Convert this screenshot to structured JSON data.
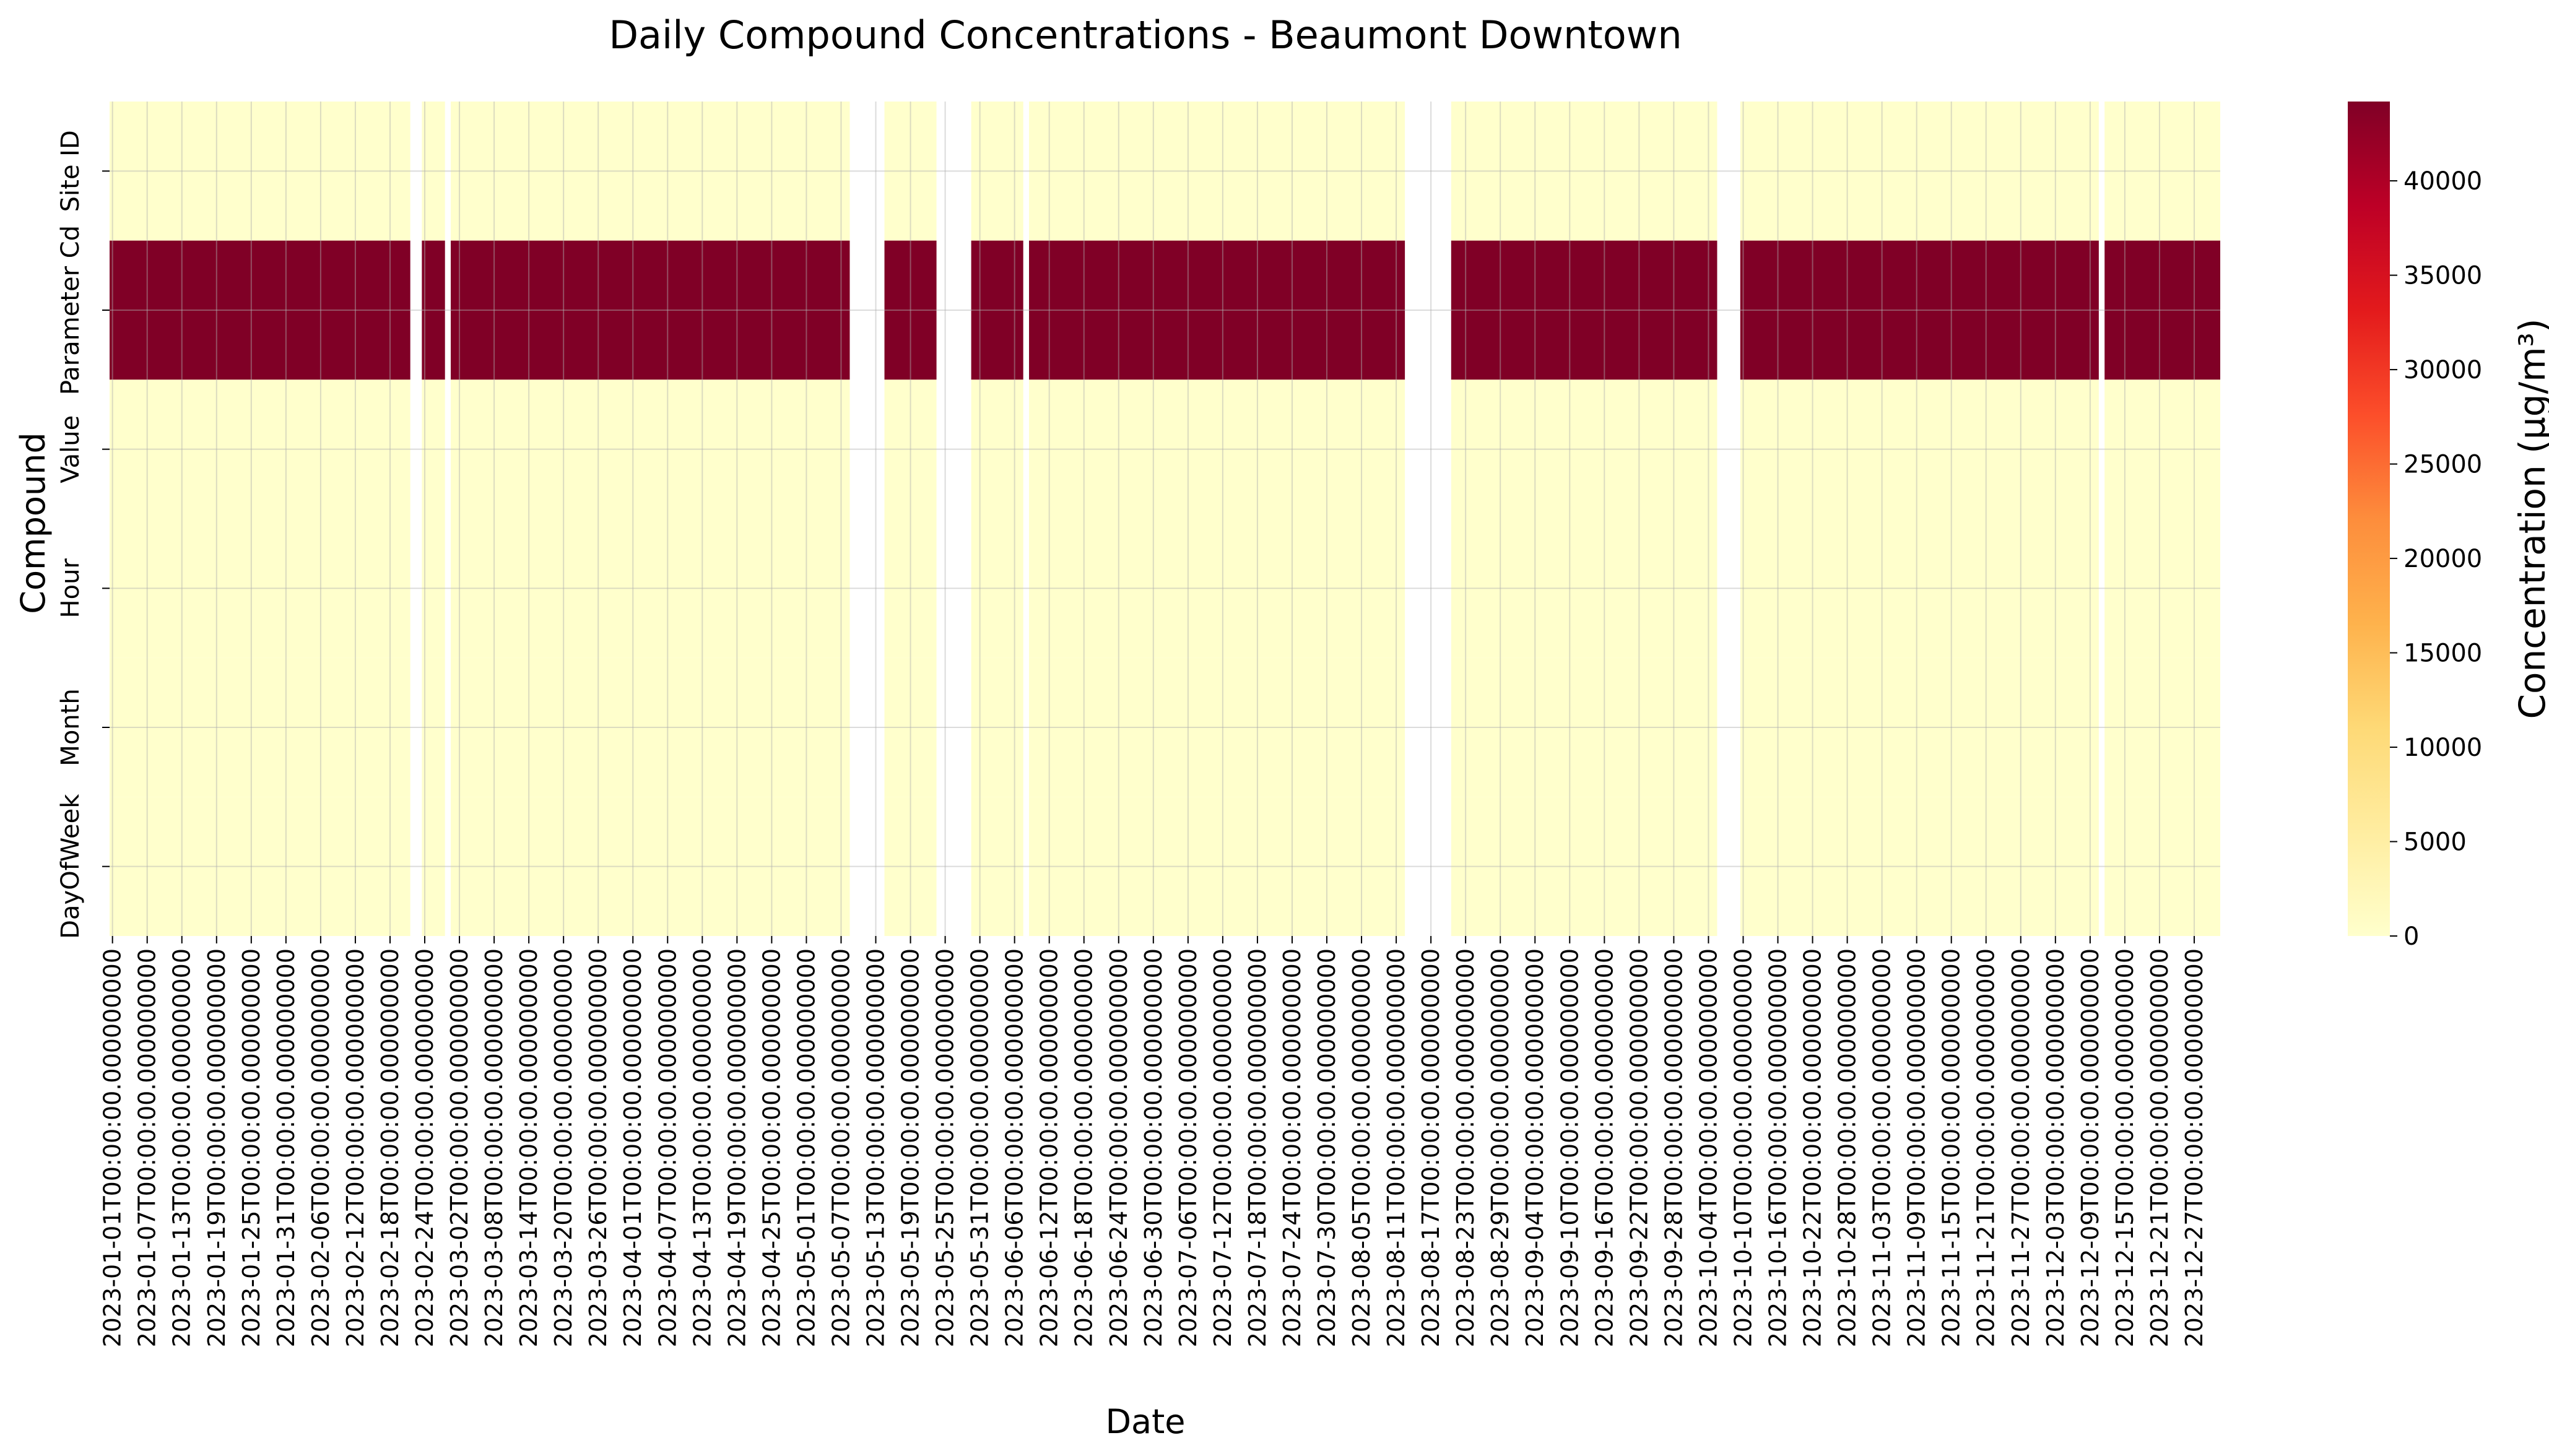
{
  "chart_data": {
    "type": "heatmap",
    "title": "Daily Compound Concentrations - Beaumont Downtown",
    "xlabel": "Date",
    "ylabel": "Compound",
    "rows": [
      "Site ID",
      "Parameter Cd",
      "Value",
      "Hour",
      "Month",
      "DayOfWeek"
    ],
    "row_values": [
      0,
      44201,
      0,
      0,
      0,
      0
    ],
    "date_range": [
      "2023-01-01",
      "2023-12-31"
    ],
    "missing_date_ranges": [
      [
        "2023-02-22",
        "2023-02-23"
      ],
      [
        "2023-02-28",
        "2023-02-28"
      ],
      [
        "2023-05-09",
        "2023-05-14"
      ],
      [
        "2023-05-24",
        "2023-05-29"
      ],
      [
        "2023-06-08",
        "2023-06-08"
      ],
      [
        "2023-08-13",
        "2023-08-20"
      ],
      [
        "2023-10-06",
        "2023-10-09"
      ],
      [
        "2023-12-11",
        "2023-12-11"
      ]
    ],
    "xtick_labels": [
      "2023-01-01T00:00:00.000000000",
      "2023-01-07T00:00:00.000000000",
      "2023-01-13T00:00:00.000000000",
      "2023-01-19T00:00:00.000000000",
      "2023-01-25T00:00:00.000000000",
      "2023-01-31T00:00:00.000000000",
      "2023-02-06T00:00:00.000000000",
      "2023-02-12T00:00:00.000000000",
      "2023-02-18T00:00:00.000000000",
      "2023-02-24T00:00:00.000000000",
      "2023-03-02T00:00:00.000000000",
      "2023-03-08T00:00:00.000000000",
      "2023-03-14T00:00:00.000000000",
      "2023-03-20T00:00:00.000000000",
      "2023-03-26T00:00:00.000000000",
      "2023-04-01T00:00:00.000000000",
      "2023-04-07T00:00:00.000000000",
      "2023-04-13T00:00:00.000000000",
      "2023-04-19T00:00:00.000000000",
      "2023-04-25T00:00:00.000000000",
      "2023-05-01T00:00:00.000000000",
      "2023-05-07T00:00:00.000000000",
      "2023-05-13T00:00:00.000000000",
      "2023-05-19T00:00:00.000000000",
      "2023-05-25T00:00:00.000000000",
      "2023-05-31T00:00:00.000000000",
      "2023-06-06T00:00:00.000000000",
      "2023-06-12T00:00:00.000000000",
      "2023-06-18T00:00:00.000000000",
      "2023-06-24T00:00:00.000000000",
      "2023-06-30T00:00:00.000000000",
      "2023-07-06T00:00:00.000000000",
      "2023-07-12T00:00:00.000000000",
      "2023-07-18T00:00:00.000000000",
      "2023-07-24T00:00:00.000000000",
      "2023-07-30T00:00:00.000000000",
      "2023-08-05T00:00:00.000000000",
      "2023-08-11T00:00:00.000000000",
      "2023-08-17T00:00:00.000000000",
      "2023-08-23T00:00:00.000000000",
      "2023-08-29T00:00:00.000000000",
      "2023-09-04T00:00:00.000000000",
      "2023-09-10T00:00:00.000000000",
      "2023-09-16T00:00:00.000000000",
      "2023-09-22T00:00:00.000000000",
      "2023-09-28T00:00:00.000000000",
      "2023-10-04T00:00:00.000000000",
      "2023-10-10T00:00:00.000000000",
      "2023-10-16T00:00:00.000000000",
      "2023-10-22T00:00:00.000000000",
      "2023-10-28T00:00:00.000000000",
      "2023-11-03T00:00:00.000000000",
      "2023-11-09T00:00:00.000000000",
      "2023-11-15T00:00:00.000000000",
      "2023-11-21T00:00:00.000000000",
      "2023-11-27T00:00:00.000000000",
      "2023-12-03T00:00:00.000000000",
      "2023-12-09T00:00:00.000000000",
      "2023-12-15T00:00:00.000000000",
      "2023-12-21T00:00:00.000000000",
      "2023-12-27T00:00:00.000000000"
    ],
    "colorbar": {
      "label": "Concentration (µg/m³)",
      "range": [
        0,
        44201
      ],
      "ticks": [
        0,
        5000,
        10000,
        15000,
        20000,
        25000,
        30000,
        35000,
        40000
      ],
      "colormap": "YlOrRd",
      "low_color": "#ffffcc",
      "high_color": "#800026"
    },
    "grid": true
  }
}
